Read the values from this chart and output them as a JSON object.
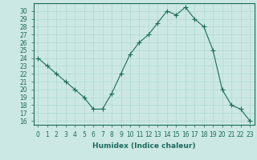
{
  "x": [
    0,
    1,
    2,
    3,
    4,
    5,
    6,
    7,
    8,
    9,
    10,
    11,
    12,
    13,
    14,
    15,
    16,
    17,
    18,
    19,
    20,
    21,
    22,
    23
  ],
  "y": [
    24,
    23,
    22,
    21,
    20,
    19,
    17.5,
    17.5,
    19.5,
    22,
    24.5,
    26,
    27,
    28.5,
    30,
    29.5,
    30.5,
    29,
    28,
    25,
    20,
    18,
    17.5,
    16
  ],
  "line_color": "#1a6b5a",
  "marker_color": "#1a6b5a",
  "bg_color": "#cce8e4",
  "grid_color": "#b0d8d0",
  "xlabel": "Humidex (Indice chaleur)",
  "ylim": [
    15.5,
    31
  ],
  "xlim": [
    -0.5,
    23.5
  ],
  "yticks": [
    16,
    17,
    18,
    19,
    20,
    21,
    22,
    23,
    24,
    25,
    26,
    27,
    28,
    29,
    30
  ],
  "xticks": [
    0,
    1,
    2,
    3,
    4,
    5,
    6,
    7,
    8,
    9,
    10,
    11,
    12,
    13,
    14,
    15,
    16,
    17,
    18,
    19,
    20,
    21,
    22,
    23
  ],
  "tick_fontsize": 5.5,
  "label_fontsize": 6.5
}
